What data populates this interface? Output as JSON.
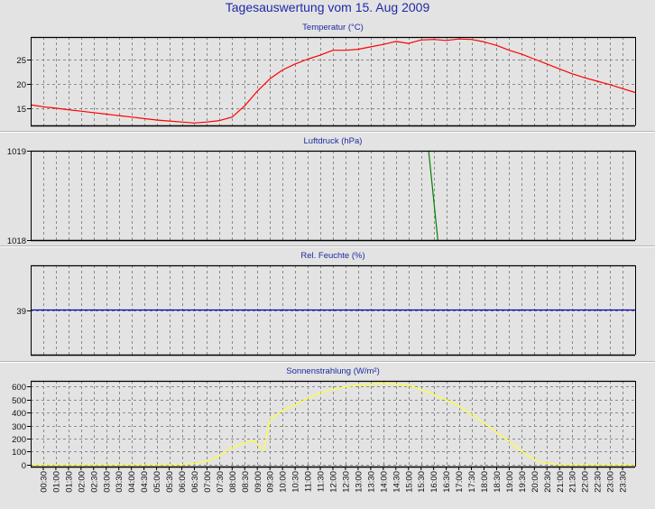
{
  "window": {
    "title": "Tagesauswertung vom 15. Aug 2009"
  },
  "chart_data": [
    {
      "type": "line",
      "title": "Temperatur (°C)",
      "color": "#ff0000",
      "ylim": [
        11.5,
        29.5
      ],
      "yticks": [
        {
          "v": 15,
          "label": "15"
        },
        {
          "v": 20,
          "label": "20"
        },
        {
          "v": 25,
          "label": "25"
        }
      ],
      "grid": true,
      "series": [
        {
          "x": [
            0,
            30,
            60,
            90,
            120,
            150,
            180,
            210,
            240,
            270,
            300,
            330,
            360,
            390,
            420,
            450,
            480,
            510,
            540,
            570,
            600,
            630,
            660,
            690,
            720,
            750,
            780,
            810,
            840,
            870,
            900,
            930,
            960,
            990,
            1020,
            1050,
            1080,
            1110,
            1140,
            1170,
            1200,
            1230,
            1260,
            1290,
            1320,
            1350,
            1380,
            1410,
            1440
          ],
          "y": [
            15.7,
            15.3,
            15.0,
            14.7,
            14.4,
            14.1,
            13.8,
            13.5,
            13.2,
            12.9,
            12.6,
            12.4,
            12.2,
            12.0,
            12.2,
            12.5,
            13.2,
            15.5,
            18.5,
            21.0,
            22.8,
            24.0,
            25.0,
            25.8,
            26.8,
            26.8,
            27.0,
            27.5,
            28.0,
            28.6,
            28.2,
            28.9,
            29.0,
            28.8,
            29.1,
            29.0,
            28.5,
            27.8,
            26.8,
            26.0,
            25.0,
            24.0,
            23.0,
            22.0,
            21.2,
            20.5,
            19.8,
            19.0,
            18.2
          ]
        }
      ]
    },
    {
      "type": "line",
      "title": "Luftdruck (hPa)",
      "color": "#008000",
      "ylim": [
        1018,
        1019
      ],
      "yticks": [
        {
          "v": 1018,
          "label": "1018"
        },
        {
          "v": 1019,
          "label": "1019"
        }
      ],
      "grid": true,
      "series": [
        {
          "x": [
            948,
            970
          ],
          "y": [
            1019,
            1018
          ]
        }
      ]
    },
    {
      "type": "line",
      "title": "Rel. Feuchte (%)",
      "color": "#0000c0",
      "ylim": [
        38,
        40
      ],
      "yticks": [
        {
          "v": 39,
          "label": "39"
        }
      ],
      "grid": true,
      "series": [
        {
          "x": [
            0,
            1440
          ],
          "y": [
            39,
            39
          ]
        }
      ]
    },
    {
      "type": "area",
      "title": "Sonnenstrahlung (W/m²)",
      "color": "#ffff33",
      "ylim": [
        -15,
        645
      ],
      "yticks": [
        {
          "v": 0,
          "label": "0"
        },
        {
          "v": 100,
          "label": "100"
        },
        {
          "v": 200,
          "label": "200"
        },
        {
          "v": 300,
          "label": "300"
        },
        {
          "v": 400,
          "label": "400"
        },
        {
          "v": 500,
          "label": "500"
        },
        {
          "v": 600,
          "label": "600"
        }
      ],
      "grid": true,
      "series": [
        {
          "x": [
            0,
            330,
            360,
            390,
            420,
            450,
            480,
            510,
            530,
            540,
            555,
            570,
            600,
            630,
            660,
            690,
            720,
            750,
            780,
            810,
            840,
            870,
            900,
            930,
            960,
            990,
            1020,
            1050,
            1080,
            1110,
            1140,
            1170,
            1200,
            1230,
            1260,
            1290,
            1320,
            1350,
            1380,
            1410,
            1440
          ],
          "y": [
            0,
            0,
            2,
            8,
            25,
            70,
            130,
            170,
            185,
            160,
            110,
            340,
            420,
            460,
            510,
            550,
            580,
            600,
            610,
            620,
            625,
            620,
            610,
            580,
            540,
            500,
            450,
            390,
            320,
            250,
            180,
            100,
            40,
            10,
            0,
            0,
            0,
            0,
            0,
            0,
            0
          ]
        }
      ]
    }
  ],
  "xaxis": {
    "labels": [
      "00:30",
      "01:00",
      "01:30",
      "02:00",
      "02:30",
      "03:00",
      "03:30",
      "04:00",
      "04:30",
      "05:00",
      "05:30",
      "06:00",
      "06:30",
      "07:00",
      "07:30",
      "08:00",
      "08:30",
      "09:00",
      "09:30",
      "10:00",
      "10:30",
      "11:00",
      "11:30",
      "12:00",
      "12:30",
      "13:00",
      "13:30",
      "14:00",
      "14:30",
      "15:00",
      "15:30",
      "16:00",
      "16:30",
      "17:00",
      "17:30",
      "18:00",
      "18:30",
      "19:00",
      "19:30",
      "20:00",
      "20:30",
      "21:00",
      "21:30",
      "22:00",
      "22:30",
      "23:00",
      "23:30"
    ]
  }
}
